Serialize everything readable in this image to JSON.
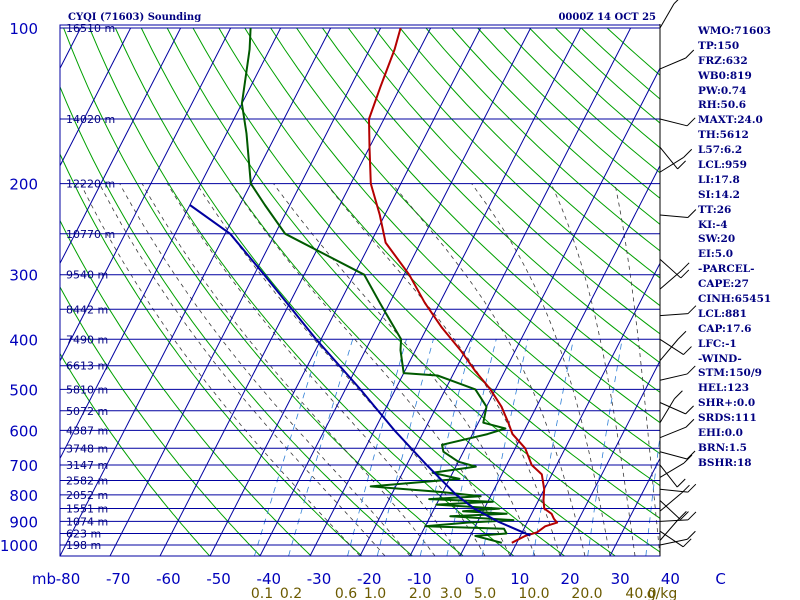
{
  "header": {
    "station_title": "CYQI (71603) Sounding",
    "time_title": "0000Z 14 OCT 25"
  },
  "indices": [
    "WMO:71603",
    "TP:150",
    "FRZ:632",
    "WB0:819",
    "PW:0.74",
    "RH:50.6",
    "MAXT:24.0",
    "TH:5612",
    "L57:6.2",
    "LCL:959",
    "LI:17.8",
    "SI:14.2",
    "TT:26",
    "KI:-4",
    "SW:20",
    "EI:5.0",
    "-PARCEL-",
    "CAPE:27",
    "CINH:65451",
    "LCL:881",
    "CAP:17.6",
    "LFC:-1",
    "-WIND-",
    "STM:150/9",
    "HEL:123",
    "SHR+:0.0",
    "SRDS:111",
    "EHI:0.0",
    "BRN:1.5",
    "BSHR:18"
  ],
  "chart_data": {
    "type": "line",
    "title": "CYQI (71603) Sounding",
    "subtitle": "0000Z 14 OCT 25",
    "x_axis": {
      "unit_label": "mb",
      "ticks": [
        "-80",
        "-70",
        "-60",
        "-50",
        "-40",
        "-30",
        "-20",
        "-10",
        "0",
        "10",
        "20",
        "30",
        "40",
        "C"
      ],
      "range": [
        -80,
        40
      ]
    },
    "y_axis": {
      "scale": "log",
      "ticks": [
        "100",
        "200",
        "300",
        "400",
        "500",
        "600",
        "700",
        "800",
        "900",
        "1000"
      ],
      "range": [
        1000,
        100
      ]
    },
    "mixing_ratio_labels": [
      "0.1",
      "0.2",
      "0.6",
      "1.0",
      "2.0",
      "3.0",
      "5.0",
      "10.0",
      "20.0",
      "40.0",
      "g/kg"
    ],
    "mixing_ratio_values": [
      0.1,
      0.2,
      0.6,
      1.0,
      2.0,
      3.0,
      5.0,
      10.0,
      20.0,
      40.0
    ],
    "height_labels": [
      {
        "p": 100,
        "text": "16510 m"
      },
      {
        "p": 150,
        "text": "14020 m"
      },
      {
        "p": 200,
        "text": "12220 m"
      },
      {
        "p": 250,
        "text": "10770 m"
      },
      {
        "p": 300,
        "text": "9540 m"
      },
      {
        "p": 350,
        "text": "8442 m"
      },
      {
        "p": 400,
        "text": "7490 m"
      },
      {
        "p": 450,
        "text": "6613 m"
      },
      {
        "p": 500,
        "text": "5810 m"
      },
      {
        "p": 550,
        "text": "5072 m"
      },
      {
        "p": 600,
        "text": "4387 m"
      },
      {
        "p": 650,
        "text": "3748 m"
      },
      {
        "p": 700,
        "text": "3147 m"
      },
      {
        "p": 750,
        "text": "2582 m"
      },
      {
        "p": 800,
        "text": "2052 m"
      },
      {
        "p": 850,
        "text": "1551 m"
      },
      {
        "p": 900,
        "text": "1074 m"
      },
      {
        "p": 950,
        "text": "623 m"
      },
      {
        "p": 1000,
        "text": "198 m"
      }
    ],
    "series": [
      {
        "color": "#b40000",
        "points": [
          [
            990,
            9
          ],
          [
            960,
            11
          ],
          [
            945,
            13
          ],
          [
            920,
            14
          ],
          [
            905,
            16
          ],
          [
            890,
            15
          ],
          [
            870,
            14
          ],
          [
            850,
            12
          ],
          [
            820,
            11
          ],
          [
            780,
            10
          ],
          [
            730,
            8
          ],
          [
            700,
            5
          ],
          [
            650,
            2
          ],
          [
            610,
            -2
          ],
          [
            580,
            -4
          ],
          [
            540,
            -7
          ],
          [
            500,
            -11
          ],
          [
            460,
            -16
          ],
          [
            420,
            -21
          ],
          [
            380,
            -27
          ],
          [
            340,
            -33
          ],
          [
            300,
            -39
          ],
          [
            260,
            -47
          ],
          [
            230,
            -51
          ],
          [
            200,
            -56
          ],
          [
            170,
            -60
          ],
          [
            150,
            -63
          ],
          [
            130,
            -64
          ],
          [
            110,
            -65
          ],
          [
            100,
            -66
          ]
        ]
      },
      {
        "color": "#005a00",
        "points": [
          [
            990,
            7
          ],
          [
            960,
            1
          ],
          [
            950,
            7
          ],
          [
            930,
            6
          ],
          [
            920,
            -10
          ],
          [
            905,
            -2
          ],
          [
            895,
            7
          ],
          [
            880,
            -6
          ],
          [
            870,
            5
          ],
          [
            860,
            -4
          ],
          [
            850,
            3
          ],
          [
            835,
            -10
          ],
          [
            825,
            1
          ],
          [
            815,
            -12
          ],
          [
            805,
            -2
          ],
          [
            790,
            -10
          ],
          [
            770,
            -25
          ],
          [
            745,
            -8
          ],
          [
            725,
            -14
          ],
          [
            705,
            -6
          ],
          [
            690,
            -10
          ],
          [
            660,
            -14
          ],
          [
            640,
            -15
          ],
          [
            610,
            -7
          ],
          [
            595,
            -4
          ],
          [
            580,
            -9
          ],
          [
            540,
            -10
          ],
          [
            500,
            -14
          ],
          [
            470,
            -23
          ],
          [
            465,
            -30
          ],
          [
            420,
            -33
          ],
          [
            400,
            -34
          ],
          [
            340,
            -42
          ],
          [
            300,
            -48
          ],
          [
            250,
            -68
          ],
          [
            220,
            -75
          ],
          [
            200,
            -80
          ],
          [
            160,
            -86
          ],
          [
            140,
            -90
          ],
          [
            110,
            -94
          ],
          [
            100,
            -96
          ]
        ]
      },
      {
        "color": "#0000a0",
        "points": [
          [
            959,
            12
          ],
          [
            900,
            4
          ],
          [
            850,
            -2
          ],
          [
            800,
            -7
          ],
          [
            700,
            -16
          ],
          [
            600,
            -26
          ],
          [
            500,
            -37
          ],
          [
            400,
            -51
          ],
          [
            300,
            -68
          ],
          [
            250,
            -79
          ],
          [
            220,
            -90
          ]
        ]
      }
    ]
  }
}
